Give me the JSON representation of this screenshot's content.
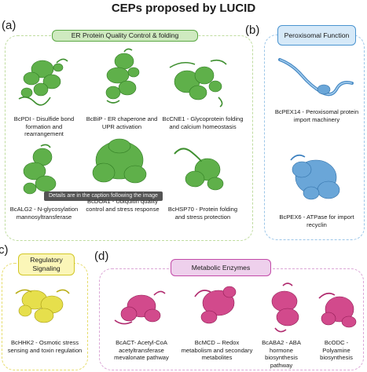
{
  "title": "CEPs proposed by LUCID",
  "colors": {
    "green": "#3f9a2e",
    "green_fill": "#cfeac0",
    "green_border": "#b8d89c",
    "blue": "#3a84c6",
    "blue_fill": "#d6e9f8",
    "blue_border": "#9cc6e8",
    "yellow": "#c9c21a",
    "yellow_fill": "#fbf6b8",
    "yellow_border": "#e6dc6a",
    "magenta": "#c0286f",
    "magenta_fill": "#eed0ec",
    "magenta_border": "#dba6d6"
  },
  "panels": {
    "a": {
      "letter": "(a)",
      "header": "ER Protein Quality Control & folding",
      "proteins": [
        {
          "caption": "BcPDI - Disulfide bond formation and rearrangement"
        },
        {
          "caption": "BcBiP - ER chaperone and UPR activation"
        },
        {
          "caption": "BcCNE1 - Glycoprotein folding and calcium homeostasis"
        },
        {
          "caption": "BcALG2 - N-glycosylation mannosyltransferase"
        },
        {
          "caption": "BcDOA1 - Ubiquitin quality control and stress response"
        },
        {
          "caption": "BcHSP70 - Protein folding and stress protection"
        }
      ]
    },
    "b": {
      "letter": "(b)",
      "header": "Peroxisomal Function",
      "proteins": [
        {
          "caption": "BcPEX14 - Peroxisomal protein import machinery"
        },
        {
          "caption": "BcPEX6 - ATPase for import recyclin"
        }
      ]
    },
    "c": {
      "letter": "c)",
      "header": "Regulatory Signaling",
      "proteins": [
        {
          "caption": "BcHHK2 - Osmotic stress sensing and toxin regulation"
        }
      ]
    },
    "d": {
      "letter": "(d)",
      "header": "Metabolic Enzymes",
      "proteins": [
        {
          "caption": "BcACT- Acetyl-CoA acetyltransferase mevalonate pathway"
        },
        {
          "caption": "BcMCD – Redox metabolism and secondary metabolites"
        },
        {
          "caption": "BcABA2 - ABA hormone biosynthesis pathway"
        },
        {
          "caption": "BcODC - Polyamine biosynthesis"
        }
      ]
    }
  },
  "tooltip": "Details are in the caption following the image"
}
